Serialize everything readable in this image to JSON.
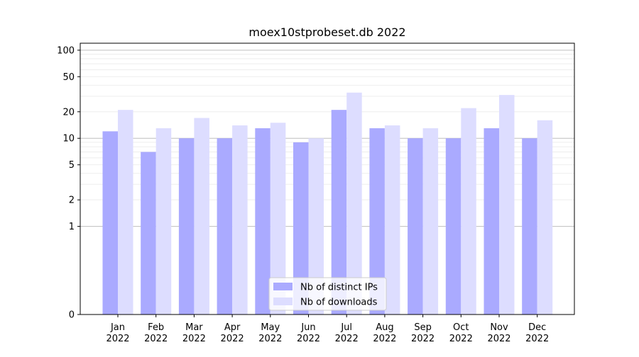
{
  "chart_data": {
    "type": "bar",
    "title": "moex10stprobeset.db 2022",
    "xlabel": "",
    "ylabel": "",
    "yscale": "symlog",
    "ylim": [
      0,
      120
    ],
    "yticks": [
      0,
      1,
      2,
      5,
      10,
      20,
      50,
      100
    ],
    "grid": "horizontal",
    "legend_position": "bottom-center",
    "categories": [
      [
        "Jan",
        "2022"
      ],
      [
        "Feb",
        "2022"
      ],
      [
        "Mar",
        "2022"
      ],
      [
        "Apr",
        "2022"
      ],
      [
        "May",
        "2022"
      ],
      [
        "Jun",
        "2022"
      ],
      [
        "Jul",
        "2022"
      ],
      [
        "Aug",
        "2022"
      ],
      [
        "Sep",
        "2022"
      ],
      [
        "Oct",
        "2022"
      ],
      [
        "Nov",
        "2022"
      ],
      [
        "Dec",
        "2022"
      ]
    ],
    "series": [
      {
        "name": "Nb of distinct IPs",
        "color": "#aaaaff",
        "values": [
          12,
          7,
          10,
          10,
          13,
          9,
          21,
          13,
          10,
          10,
          13,
          10
        ]
      },
      {
        "name": "Nb of downloads",
        "color": "#ddddff",
        "values": [
          21,
          13,
          17,
          14,
          15,
          10,
          33,
          14,
          13,
          22,
          31,
          16
        ]
      }
    ]
  }
}
